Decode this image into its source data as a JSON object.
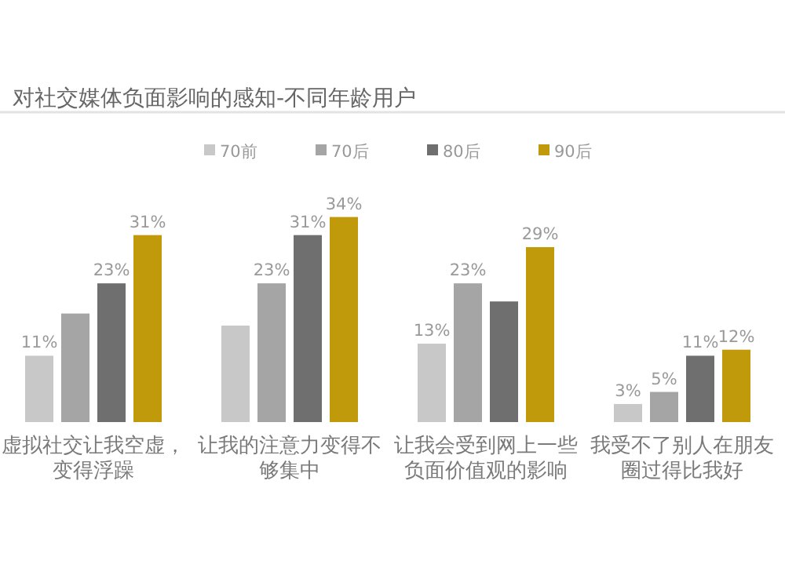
{
  "chart_data": {
    "type": "bar",
    "title": "对社交媒体负面影响的感知-不同年龄用户",
    "categories": [
      "虚拟社交让我空虚，变得浮躁",
      "让我的注意力变得不够集中",
      "让我会受到网上一些负面价值观的影响",
      "我受不了别人在朋友圈过得比我好"
    ],
    "series": [
      {
        "name": "70前",
        "color": "#c8c8c8",
        "values": [
          11,
          16,
          13,
          3
        ],
        "value_labels": [
          "11%",
          null,
          "13%",
          "3%"
        ]
      },
      {
        "name": "70后",
        "color": "#a5a5a5",
        "values": [
          18,
          23,
          23,
          5
        ],
        "value_labels": [
          null,
          "23%",
          "23%",
          "5%"
        ]
      },
      {
        "name": "80后",
        "color": "#6f6f6f",
        "values": [
          23,
          31,
          20,
          11
        ],
        "value_labels": [
          "23%",
          "31%",
          null,
          "11%"
        ]
      },
      {
        "name": "90后",
        "color": "#c09a0a",
        "values": [
          31,
          34,
          29,
          12
        ],
        "value_labels": [
          "31%",
          "34%",
          "29%",
          "12%"
        ]
      }
    ],
    "legend": "top",
    "grid": false
  }
}
